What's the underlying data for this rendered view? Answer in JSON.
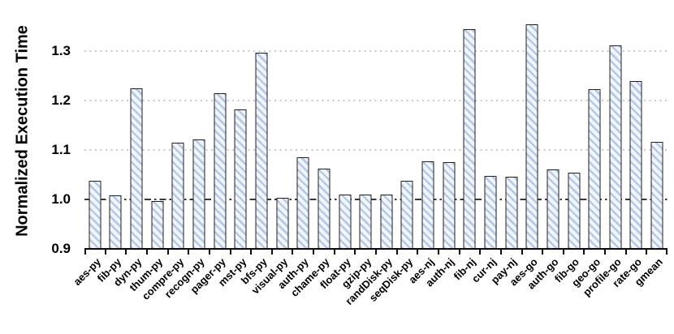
{
  "chart_data": {
    "type": "bar",
    "title": "",
    "ylabel": "Normalized Execution Time",
    "xlabel": "",
    "categories": [
      "aes-py",
      "fib-py",
      "dyn-py",
      "thum-py",
      "compre-py",
      "recogn-py",
      "pager-py",
      "mst-py",
      "bfs-py",
      "visual-py",
      "auth-py",
      "chame-py",
      "float-py",
      "gzip-py",
      "randDisk-py",
      "seqDisk-py",
      "aes-nj",
      "auth-nj",
      "fib-nj",
      "cur-nj",
      "pay-nj",
      "aes-go",
      "auth-go",
      "fib-go",
      "geo-go",
      "profile-go",
      "rate-go",
      "gmean"
    ],
    "values": [
      1.038,
      1.008,
      1.224,
      0.997,
      1.115,
      1.121,
      1.214,
      1.181,
      1.296,
      1.003,
      1.085,
      1.062,
      1.009,
      1.01,
      1.01,
      1.038,
      1.077,
      1.075,
      1.343,
      1.048,
      1.046,
      1.353,
      1.061,
      1.054,
      1.223,
      1.31,
      1.238,
      1.116
    ],
    "ylim": [
      0.9,
      1.386
    ],
    "yticks": [
      0.9,
      1.0,
      1.1,
      1.2,
      1.3
    ],
    "gridline_values": [
      1.1,
      1.2,
      1.3
    ],
    "reference_line": 1.0,
    "legend": null,
    "grid": "horizontal-dotted",
    "colors": {
      "bar_hatch_stripe": "#b7c9e7",
      "bar_hatch_bg": "#f1f5fc",
      "bar_border": "#1f1f1f",
      "gridline": "#c9c9c9",
      "reference_line": "#3a3a3a",
      "axis": "#0a0a0a",
      "text": "#000000"
    }
  }
}
